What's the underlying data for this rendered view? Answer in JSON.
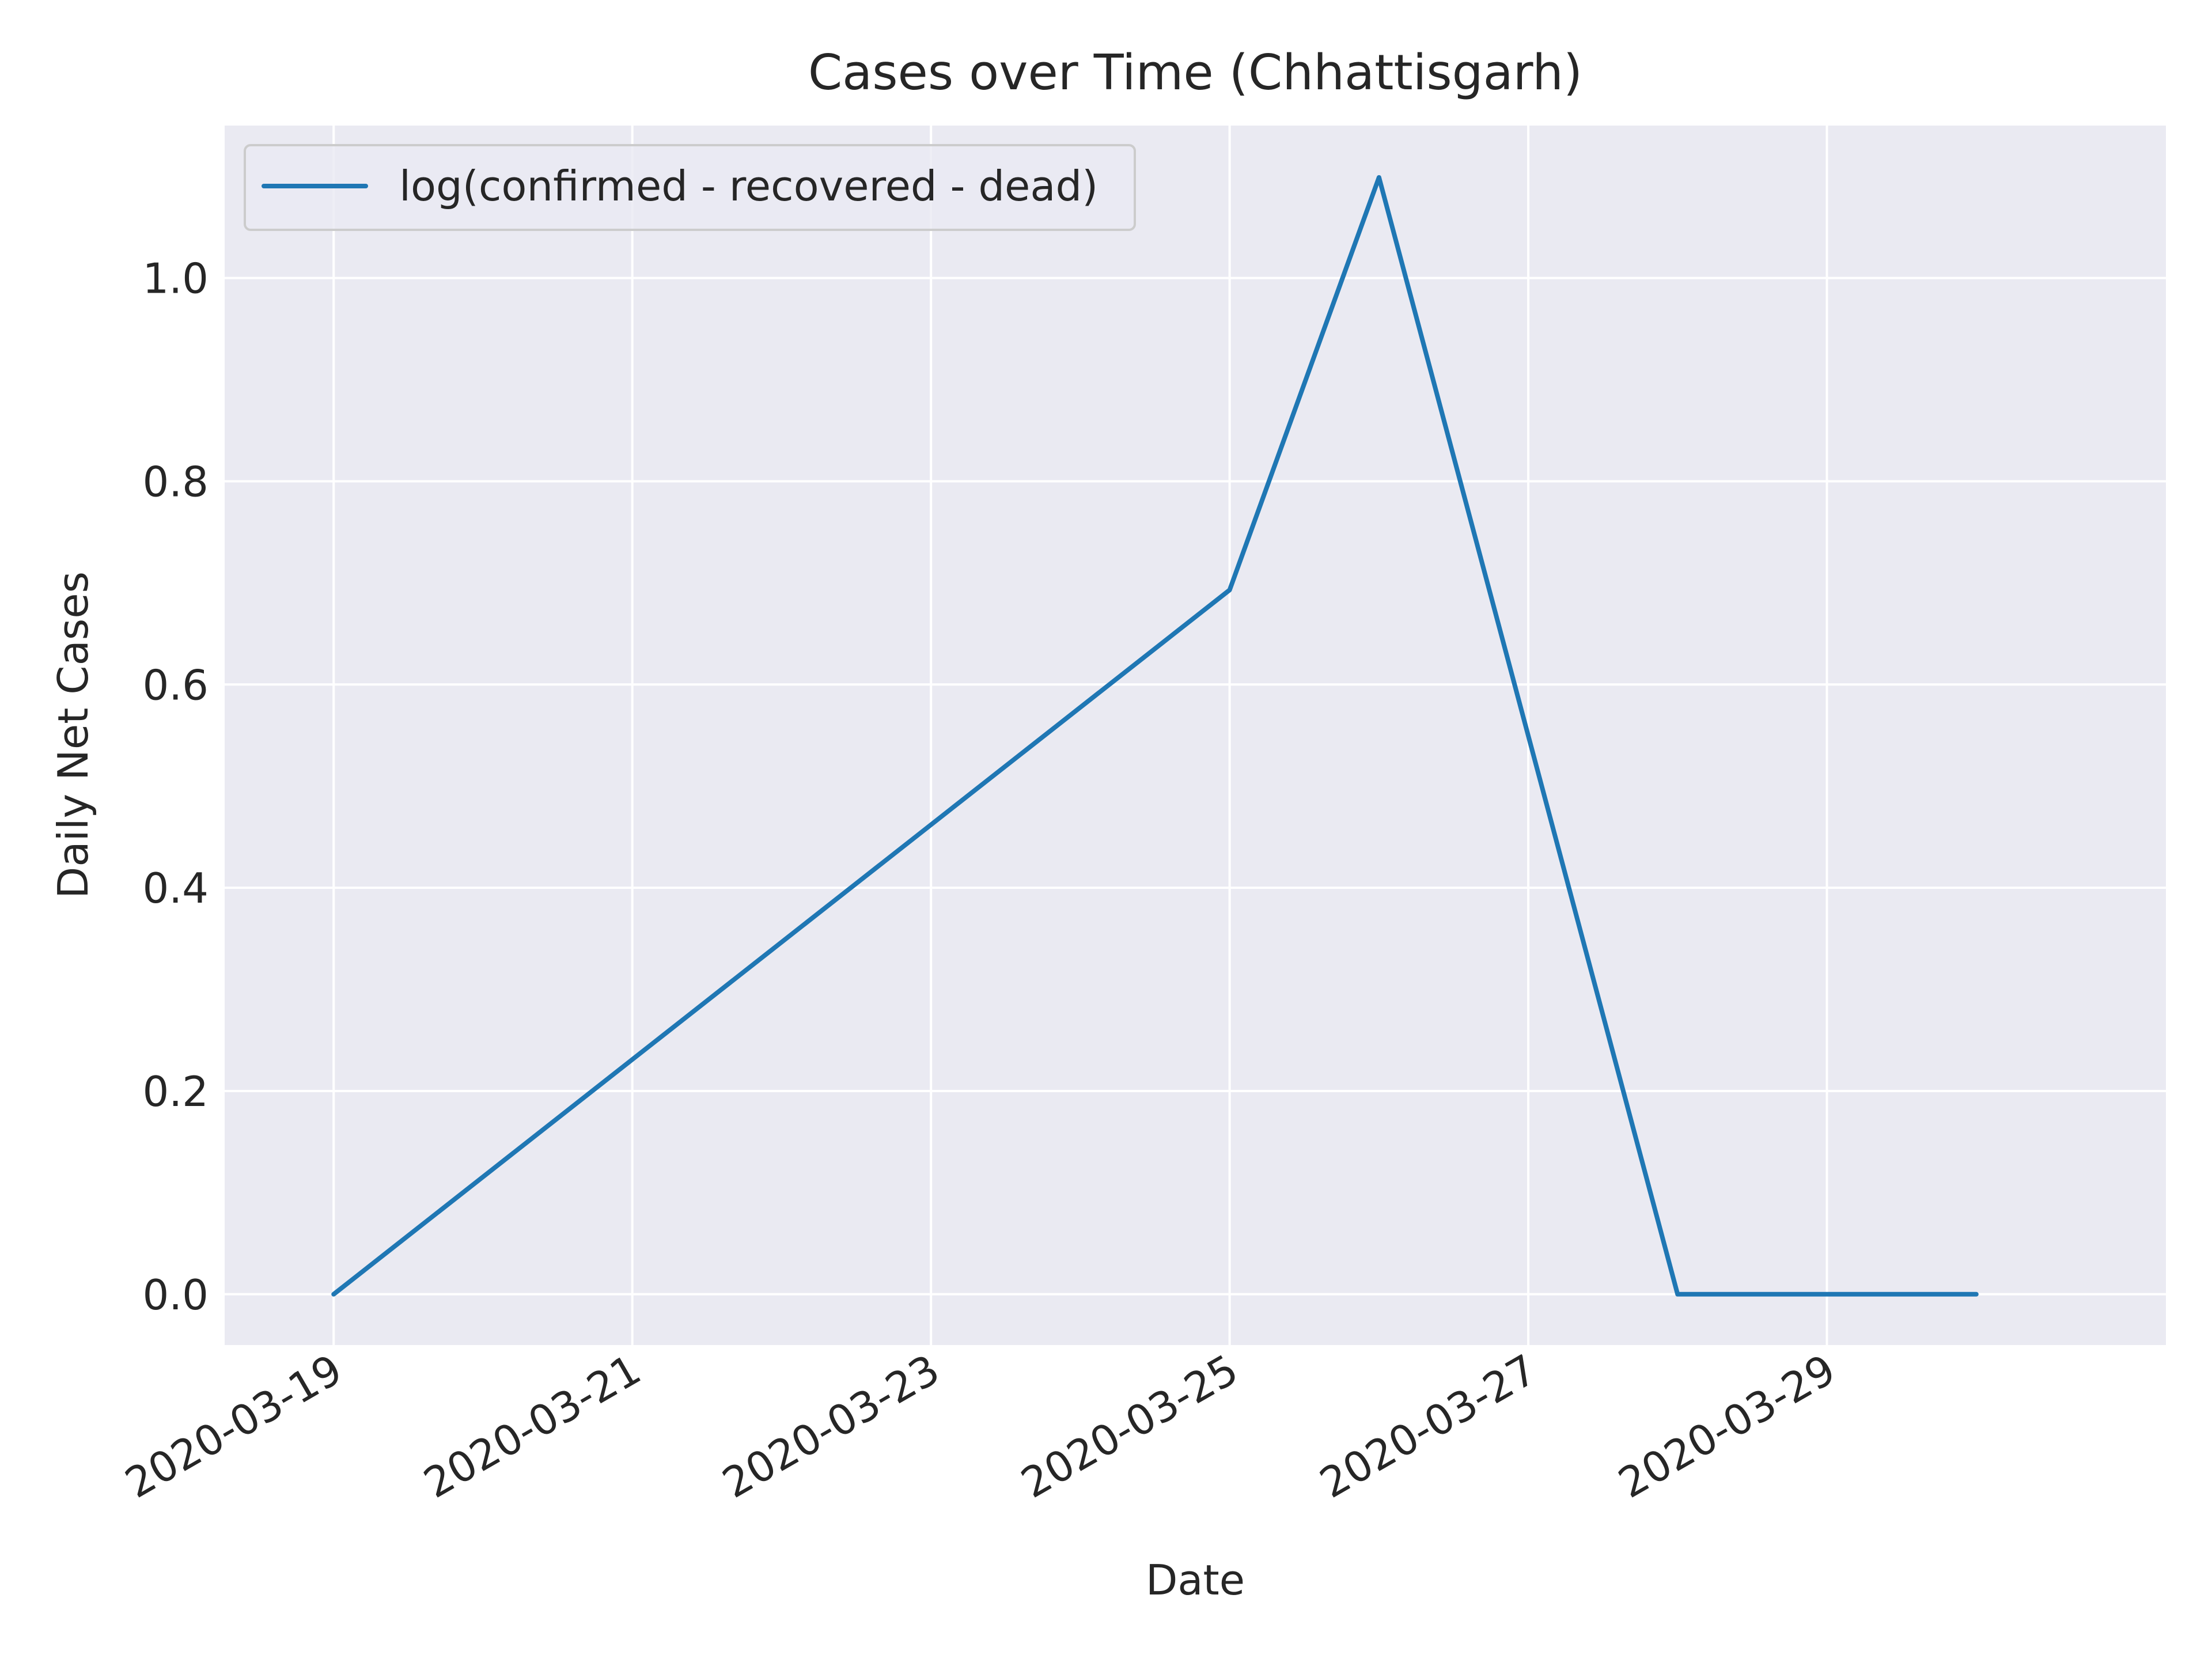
{
  "chart_data": {
    "type": "line",
    "title": "Cases over Time (Chhattisgarh)",
    "xlabel": "Date",
    "ylabel": "Daily Net Cases",
    "x_type": "date",
    "x_ticks": [
      "2020-03-19",
      "2020-03-21",
      "2020-03-23",
      "2020-03-25",
      "2020-03-27",
      "2020-03-29"
    ],
    "y_ticks": [
      0.0,
      0.2,
      0.4,
      0.6,
      0.8,
      1.0
    ],
    "y_tick_labels": [
      "0.0",
      "0.2",
      "0.4",
      "0.6",
      "0.8",
      "1.0"
    ],
    "xlim": [
      "2020-03-18",
      "2020-03-31"
    ],
    "ylim": [
      -0.05,
      1.15
    ],
    "grid": true,
    "legend_position": "top-left",
    "background_color": "#eaeaf2",
    "grid_color": "#ffffff",
    "series": [
      {
        "name": "log(confirmed - recovered - dead)",
        "color": "#1f77b4",
        "points": [
          {
            "x": "2020-03-19",
            "y": 0.0
          },
          {
            "x": "2020-03-25",
            "y": 0.693
          },
          {
            "x": "2020-03-26",
            "y": 1.099
          },
          {
            "x": "2020-03-28",
            "y": 0.0
          },
          {
            "x": "2020-03-30",
            "y": 0.0
          }
        ]
      }
    ]
  }
}
